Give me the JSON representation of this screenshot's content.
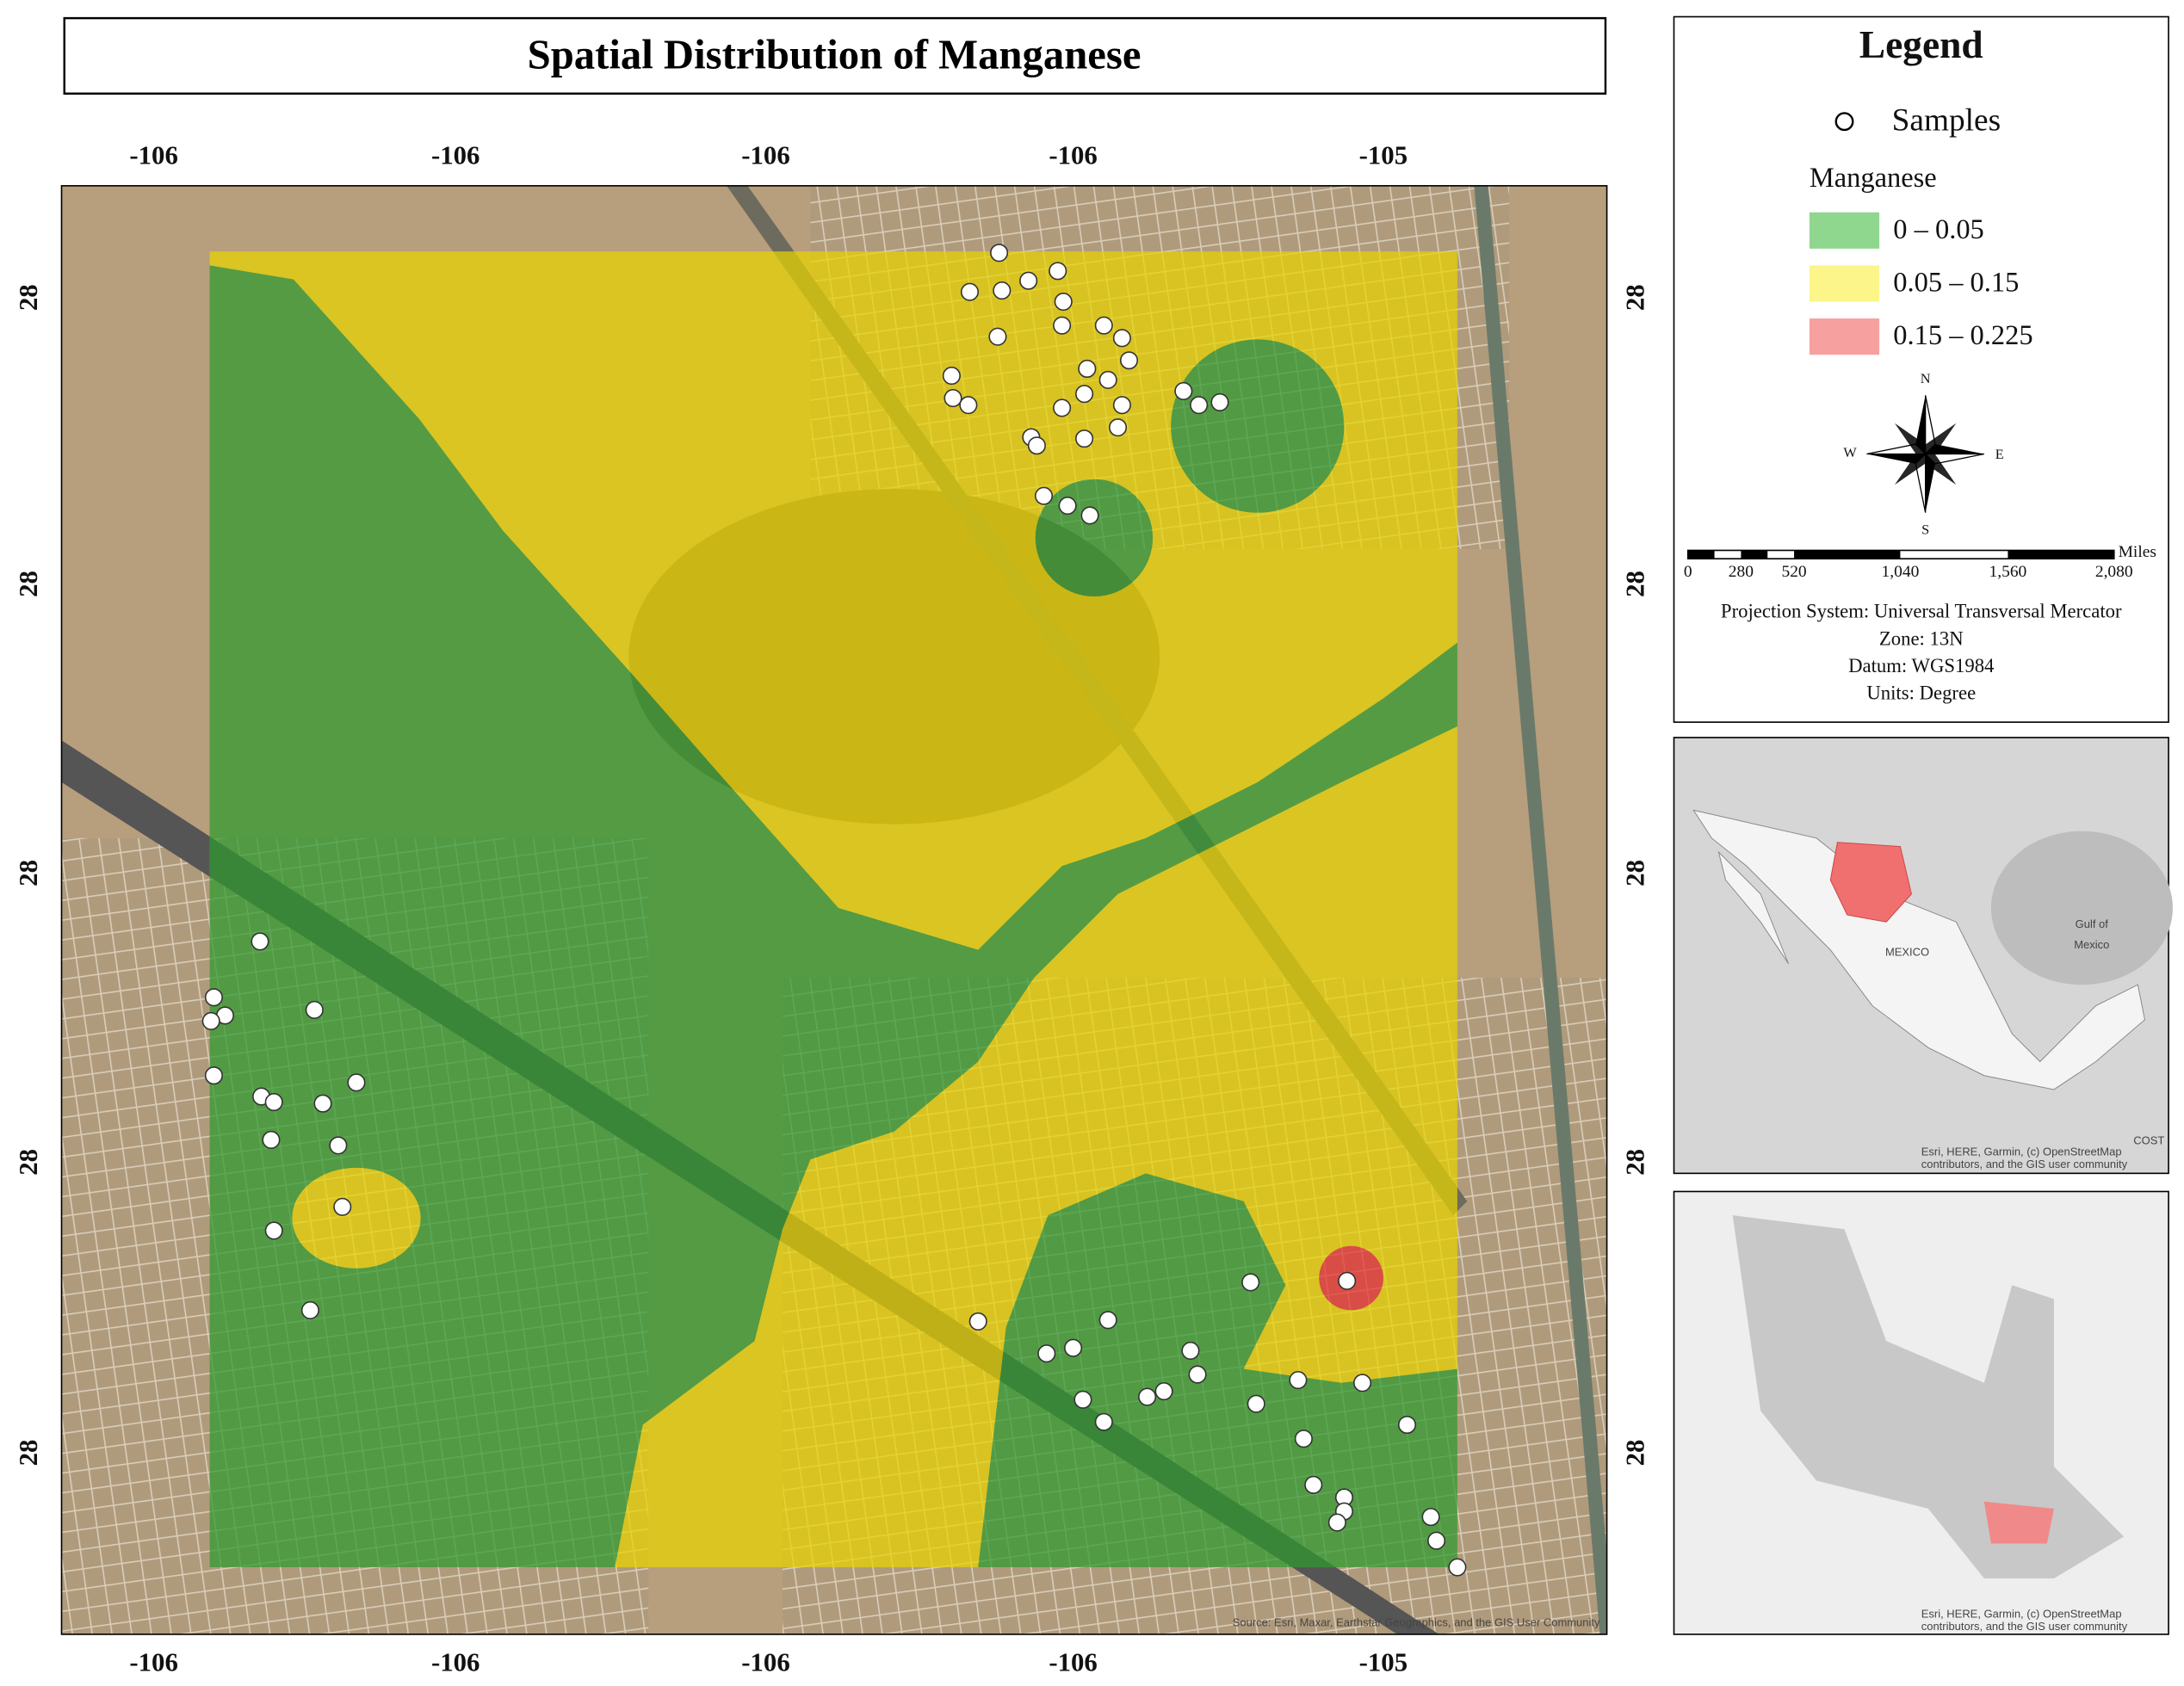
{
  "title": "Spatial Distribution of Manganese",
  "axes": {
    "top": [
      -106,
      -106,
      -106,
      -106,
      -105
    ],
    "bottom": [
      -106,
      -106,
      -106,
      -106,
      -105
    ],
    "left": [
      28,
      28,
      28,
      28,
      28
    ],
    "right": [
      28,
      28,
      28,
      28,
      28
    ]
  },
  "map_credit": "Source: Esri, Maxar, Earthstar Geographics, and the GIS User Community",
  "legend": {
    "title": "Legend",
    "samples": "Samples",
    "variable": "Manganese",
    "classes": [
      {
        "label": "0 – 0.05",
        "color": "#8fd68f"
      },
      {
        "label": "0.05 – 0.15",
        "color": "#fbf58a"
      },
      {
        "label": "0.15 – 0.225",
        "color": "#f7a0a0"
      }
    ],
    "compass": [
      "N",
      "E",
      "S",
      "W"
    ],
    "scale": {
      "unit": "Miles",
      "ticks": [
        "0",
        "280",
        "520",
        "1,040",
        "1,560",
        "2,080"
      ]
    },
    "info": [
      "Projection System: Universal Transversal Mercator",
      "Zone: 13N",
      "Datum: WGS1984",
      "Units: Degree"
    ]
  },
  "inset1": {
    "labels": [
      "MEXICO",
      "Gulf of",
      "Mexico",
      "COST"
    ],
    "credit": [
      "Esri, HERE, Garmin, (c) OpenStreetMap",
      "contributors, and the GIS user community"
    ]
  },
  "inset2": {
    "credit": [
      "Esri, HERE, Garmin, (c) OpenStreetMap",
      "contributors, and the GIS user community"
    ]
  }
}
